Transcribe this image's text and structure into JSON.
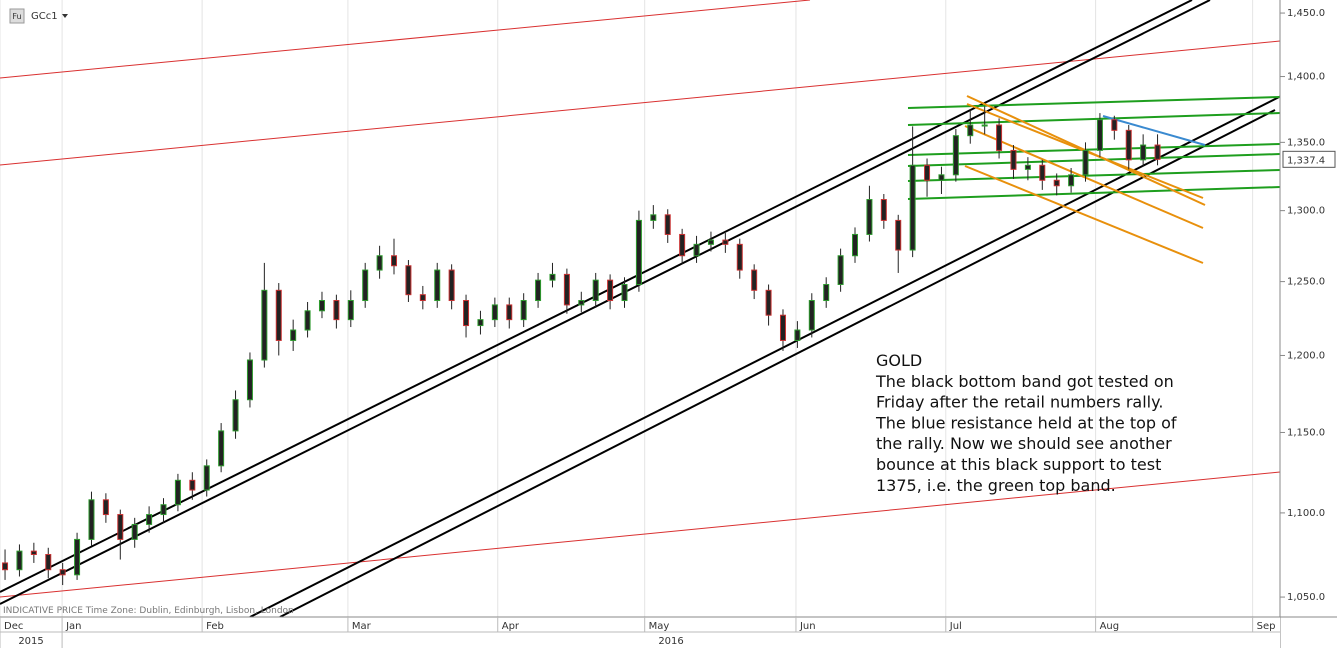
{
  "header": {
    "badge": "Fu",
    "symbol": "GCc1",
    "footer_note": "INDICATIVE PRICE  Time Zone: Dublin, Edinburgh, Lisbon, London"
  },
  "annotation": [
    "GOLD",
    "The black bottom band got tested on",
    "Friday after the retail numbers rally.",
    "The blue resistance held at the top of",
    "the rally. Now we should see another",
    "bounce at this black support to test",
    "1375, i.e. the green top band."
  ],
  "chart_data": {
    "type": "candlestick",
    "log_scale": true,
    "up_color": "#2e9a2e",
    "down_color": "#c83232",
    "xlim": [
      -0.35,
      88.5
    ],
    "xticks": [
      {
        "value": -0.35,
        "label": "Dec"
      },
      {
        "value": 3.96,
        "label": "Jan"
      },
      {
        "value": 13.68,
        "label": "Feb"
      },
      {
        "value": 23.8,
        "label": "Mar"
      },
      {
        "value": 34.2,
        "label": "Apr"
      },
      {
        "value": 44.4,
        "label": "May"
      },
      {
        "value": 54.9,
        "label": "Jun"
      },
      {
        "value": 65.3,
        "label": "Jul"
      },
      {
        "value": 75.7,
        "label": "Aug"
      },
      {
        "value": 86.6,
        "label": "Sep"
      }
    ],
    "year_ticks": [
      {
        "value": -0.35,
        "label": "2015"
      },
      {
        "value": 3.96,
        "label": "2016"
      }
    ],
    "ylim": [
      1038.5,
      1460.5
    ],
    "yticks": [
      {
        "value": 1050,
        "label": "1,050.0"
      },
      {
        "value": 1100,
        "label": "1,100.0"
      },
      {
        "value": 1150,
        "label": "1,150.0"
      },
      {
        "value": 1200,
        "label": "1,200.0"
      },
      {
        "value": 1250,
        "label": "1,250.0"
      },
      {
        "value": 1300,
        "label": "1,300.0"
      },
      {
        "value": 1350,
        "label": "1,350.0"
      },
      {
        "value": 1400,
        "label": "1,400.0"
      },
      {
        "value": 1450,
        "label": "1,450.0"
      }
    ],
    "last_value_label": "1,337.4",
    "open": [
      1070,
      1066,
      1077,
      1075,
      1066,
      1063,
      1084,
      1108,
      1099,
      1084,
      1093,
      1099,
      1105,
      1120,
      1114,
      1129,
      1151,
      1171,
      1197,
      1244,
      1210,
      1217,
      1230,
      1237,
      1224,
      1237,
      1258,
      1268,
      1261,
      1241,
      1237,
      1258,
      1237,
      1220,
      1224,
      1234,
      1224,
      1237,
      1251,
      1255,
      1234,
      1237,
      1251,
      1237,
      1248,
      1293,
      1297,
      1283,
      1268,
      1276,
      1279,
      1276,
      1258,
      1244,
      1227,
      1210,
      1217,
      1237,
      1248,
      1268,
      1283,
      1308,
      1293,
      1272,
      1333,
      1322,
      1326,
      1355,
      1363,
      1363,
      1344,
      1330,
      1333,
      1322,
      1318,
      1326,
      1344,
      1367,
      1359,
      1337,
      1348
    ],
    "high": [
      1078,
      1081,
      1082,
      1079,
      1070,
      1088,
      1113,
      1112,
      1102,
      1097,
      1104,
      1109,
      1124,
      1125,
      1133,
      1156,
      1177,
      1202,
      1263,
      1249,
      1224,
      1236,
      1243,
      1241,
      1244,
      1263,
      1275,
      1280,
      1265,
      1247,
      1263,
      1262,
      1241,
      1230,
      1239,
      1239,
      1242,
      1256,
      1263,
      1259,
      1243,
      1256,
      1255,
      1253,
      1300,
      1304,
      1301,
      1287,
      1282,
      1285,
      1284,
      1280,
      1262,
      1248,
      1231,
      1223,
      1242,
      1253,
      1273,
      1288,
      1318,
      1312,
      1297,
      1362,
      1338,
      1332,
      1360,
      1375,
      1377,
      1368,
      1348,
      1339,
      1337,
      1327,
      1331,
      1350,
      1372,
      1370,
      1363,
      1356,
      1356
    ],
    "low": [
      1060,
      1062,
      1070,
      1061,
      1057,
      1060,
      1080,
      1094,
      1072,
      1079,
      1088,
      1094,
      1101,
      1108,
      1110,
      1125,
      1146,
      1166,
      1192,
      1200,
      1203,
      1212,
      1225,
      1218,
      1219,
      1232,
      1252,
      1255,
      1236,
      1231,
      1232,
      1231,
      1212,
      1214,
      1219,
      1218,
      1219,
      1232,
      1246,
      1228,
      1229,
      1232,
      1231,
      1232,
      1243,
      1287,
      1277,
      1262,
      1263,
      1271,
      1270,
      1252,
      1238,
      1220,
      1203,
      1205,
      1212,
      1232,
      1243,
      1263,
      1278,
      1287,
      1256,
      1267,
      1310,
      1312,
      1321,
      1349,
      1356,
      1338,
      1323,
      1322,
      1315,
      1311,
      1313,
      1321,
      1339,
      1352,
      1330,
      1332,
      1333
    ],
    "close": [
      1066,
      1077,
      1075,
      1066,
      1063,
      1084,
      1108,
      1099,
      1084,
      1093,
      1099,
      1105,
      1120,
      1114,
      1129,
      1151,
      1171,
      1197,
      1244,
      1210,
      1217,
      1230,
      1237,
      1224,
      1237,
      1258,
      1268,
      1261,
      1241,
      1237,
      1258,
      1237,
      1220,
      1224,
      1234,
      1224,
      1237,
      1251,
      1255,
      1234,
      1237,
      1251,
      1237,
      1248,
      1293,
      1297,
      1283,
      1268,
      1276,
      1279,
      1276,
      1258,
      1244,
      1227,
      1210,
      1217,
      1237,
      1248,
      1268,
      1283,
      1308,
      1293,
      1272,
      1333,
      1322,
      1326,
      1355,
      1363,
      1363,
      1344,
      1330,
      1333,
      1322,
      1318,
      1326,
      1344,
      1367,
      1359,
      1337,
      1348,
      1337.4
    ]
  }
}
